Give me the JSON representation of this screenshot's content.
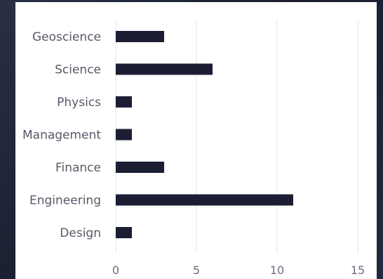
{
  "chart_data": {
    "type": "bar",
    "orientation": "horizontal",
    "categories": [
      "Geoscience",
      "Science",
      "Physics",
      "Management",
      "Finance",
      "Engineering",
      "Design"
    ],
    "values": [
      3,
      6,
      1,
      1,
      3,
      11,
      1
    ],
    "xlim": [
      0,
      15
    ],
    "xticks": [
      0,
      5,
      10,
      15
    ],
    "grid": true,
    "bar_color": "#1b1e33",
    "grid_color": "#e3e3e6"
  }
}
